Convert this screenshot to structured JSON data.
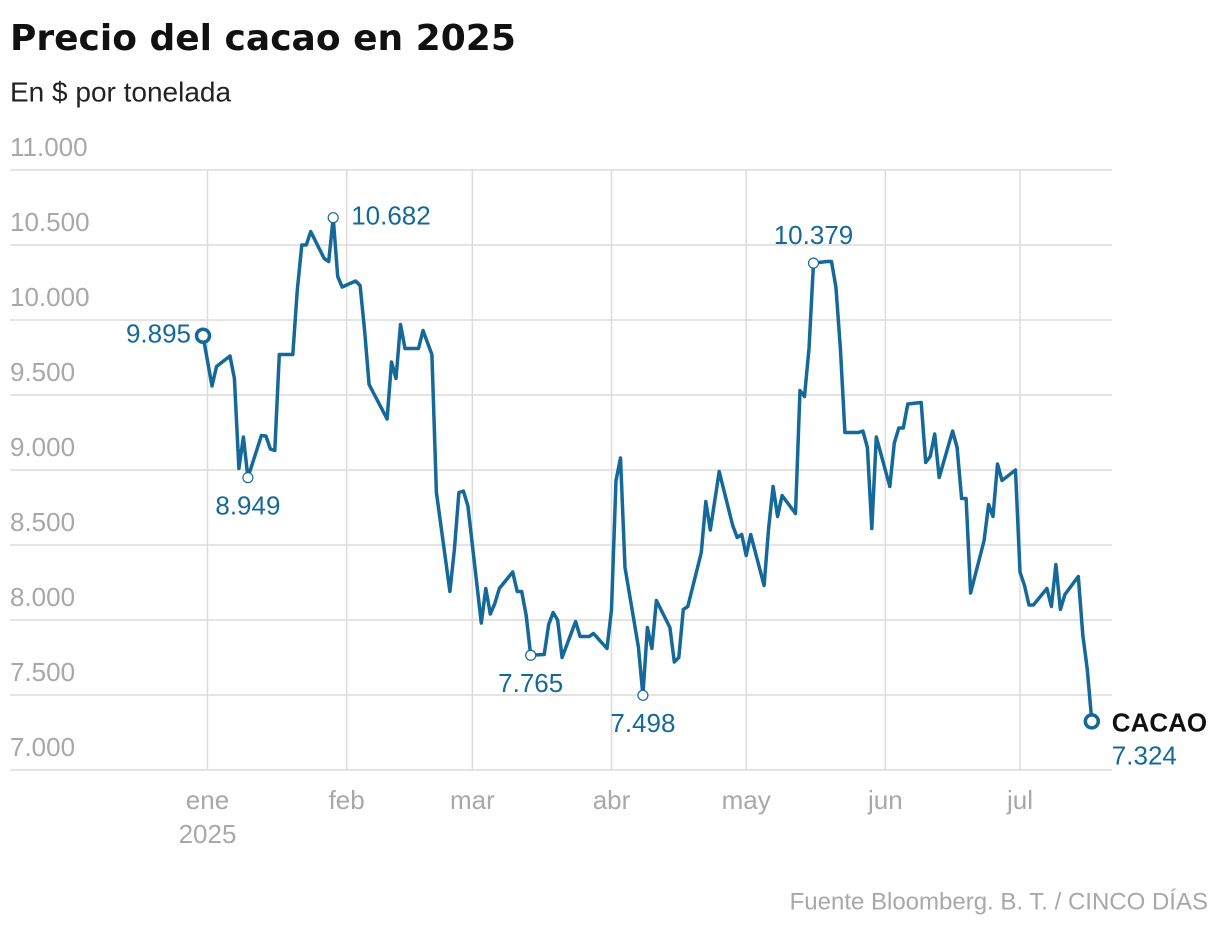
{
  "chart_data": {
    "type": "line",
    "title": "Precio del cacao en 2025",
    "subtitle": "En $ por tonelada",
    "source": "Fuente Bloomberg. B. T. / CINCO DÍAS",
    "year_label": "2025",
    "x": [
      -1,
      1,
      2,
      5,
      6,
      7,
      8,
      9,
      12,
      13,
      14,
      15,
      16,
      19,
      20,
      21,
      22,
      23,
      26,
      27,
      28,
      29,
      30,
      33,
      34,
      35,
      36,
      40,
      41,
      42,
      43,
      44,
      47,
      48,
      50,
      51,
      54,
      55,
      56,
      57,
      58,
      61,
      62,
      63,
      64,
      65,
      68,
      69,
      70,
      71,
      72,
      75,
      76,
      77,
      78,
      79,
      82,
      83,
      85,
      86,
      89,
      90,
      91,
      92,
      93,
      96,
      97,
      98,
      99,
      100,
      103,
      104,
      105,
      106,
      107,
      110,
      111,
      112,
      114,
      117,
      118,
      119,
      120,
      121,
      124,
      125,
      126,
      127,
      128,
      131,
      132,
      133,
      134,
      135,
      138,
      139,
      140,
      141,
      142,
      145,
      146,
      147,
      148,
      149,
      152,
      153,
      154,
      155,
      156,
      159,
      160,
      161,
      162,
      163,
      166,
      167,
      168,
      169,
      170,
      173,
      174,
      175,
      176,
      177,
      180,
      181,
      182,
      183,
      184,
      187,
      188,
      189,
      190,
      191,
      194,
      195,
      196,
      197
    ],
    "series": [
      {
        "name": "CACAO",
        "color": "#15699a",
        "values": [
          9895,
          9560,
          9690,
          9760,
          9610,
          9010,
          9220,
          8949,
          9230,
          9227,
          9140,
          9130,
          9770,
          9770,
          10200,
          10500,
          10500,
          10590,
          10410,
          10390,
          10682,
          10290,
          10220,
          10260,
          10230,
          9930,
          9570,
          9340,
          9720,
          9610,
          9970,
          9810,
          9810,
          9930,
          9770,
          8850,
          8190,
          8470,
          8850,
          8860,
          8760,
          7980,
          8210,
          8040,
          8110,
          8210,
          8320,
          8190,
          8190,
          8030,
          7765,
          7770,
          7970,
          8050,
          8000,
          7750,
          7990,
          7890,
          7890,
          7910,
          7810,
          8070,
          8930,
          9080,
          8350,
          7820,
          7498,
          7950,
          7810,
          8130,
          7950,
          7720,
          7750,
          8070,
          8090,
          8450,
          8790,
          8600,
          8990,
          8630,
          8550,
          8570,
          8430,
          8570,
          8230,
          8610,
          8890,
          8690,
          8830,
          8710,
          9530,
          9490,
          9810,
          10379,
          10390,
          10390,
          10220,
          9810,
          9250,
          9250,
          9260,
          9150,
          8610,
          9220,
          8890,
          9180,
          9280,
          9280,
          9440,
          9450,
          9050,
          9090,
          9240,
          8950,
          9260,
          9150,
          8810,
          8810,
          8180,
          8530,
          8770,
          8690,
          9040,
          8930,
          9000,
          8320,
          8230,
          8100,
          8100,
          8210,
          8090,
          8370,
          8070,
          8170,
          8290,
          7900,
          7670,
          7324
        ]
      }
    ],
    "annotations": [
      {
        "x": -1,
        "y": 9895,
        "label": "9.895"
      },
      {
        "x": 9,
        "y": 8949,
        "label": "8.949"
      },
      {
        "x": 28,
        "y": 10682,
        "label": "10.682"
      },
      {
        "x": 72,
        "y": 7765,
        "label": "7.765"
      },
      {
        "x": 97,
        "y": 7498,
        "label": "7.498"
      },
      {
        "x": 135,
        "y": 10379,
        "label": "10.379"
      },
      {
        "x": 197,
        "y": 7324,
        "label": "7.324"
      }
    ],
    "xlim": [
      -44,
      201.5
    ],
    "xticks": [
      {
        "value": 0,
        "label": "ene"
      },
      {
        "value": 31,
        "label": "feb"
      },
      {
        "value": 59,
        "label": "mar"
      },
      {
        "value": 90,
        "label": "abr"
      },
      {
        "value": 120,
        "label": "may"
      },
      {
        "value": 151,
        "label": "jun"
      },
      {
        "value": 181,
        "label": "jul"
      }
    ],
    "ylim": [
      7000,
      11000
    ],
    "yticks": [
      {
        "value": 7000,
        "label": "7.000"
      },
      {
        "value": 7500,
        "label": "7.500"
      },
      {
        "value": 8000,
        "label": "8.000"
      },
      {
        "value": 8500,
        "label": "8.500"
      },
      {
        "value": 9000,
        "label": "9.000"
      },
      {
        "value": 9500,
        "label": "9.500"
      },
      {
        "value": 10000,
        "label": "10.000"
      },
      {
        "value": 10500,
        "label": "10.500"
      },
      {
        "value": 11000,
        "label": "11.000"
      }
    ],
    "grid": true
  }
}
